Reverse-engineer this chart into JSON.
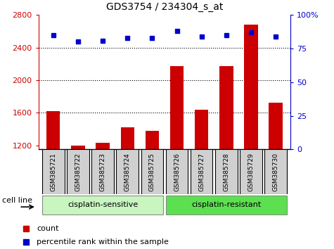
{
  "title": "GDS3754 / 234304_s_at",
  "samples": [
    "GSM385721",
    "GSM385722",
    "GSM385723",
    "GSM385724",
    "GSM385725",
    "GSM385726",
    "GSM385727",
    "GSM385728",
    "GSM385729",
    "GSM385730"
  ],
  "counts": [
    1620,
    1195,
    1230,
    1420,
    1380,
    2170,
    1640,
    2170,
    2680,
    1720
  ],
  "percentile_ranks": [
    85,
    80,
    81,
    83,
    83,
    88,
    84,
    85,
    87,
    84
  ],
  "ylim_left": [
    1150,
    2800
  ],
  "ylim_right": [
    0,
    100
  ],
  "yticks_left": [
    1200,
    1600,
    2000,
    2400,
    2800
  ],
  "yticks_right": [
    0,
    25,
    50,
    75,
    100
  ],
  "grid_values": [
    1600,
    2000,
    2400
  ],
  "bar_color": "#cc0000",
  "dot_color": "#0000cc",
  "groups": [
    {
      "label": "cisplatin-sensitive",
      "start": 0,
      "end": 5,
      "color": "#c8f5c0"
    },
    {
      "label": "cisplatin-resistant",
      "start": 5,
      "end": 10,
      "color": "#5de050"
    }
  ],
  "group_label": "cell line",
  "legend_items": [
    {
      "label": "count",
      "color": "#cc0000"
    },
    {
      "label": "percentile rank within the sample",
      "color": "#0000cc"
    }
  ],
  "left_axis_color": "#cc0000",
  "right_axis_color": "#0000cc",
  "plot_bg_color": "#ffffff",
  "sample_box_color": "#d0d0d0",
  "base_value": 1150
}
